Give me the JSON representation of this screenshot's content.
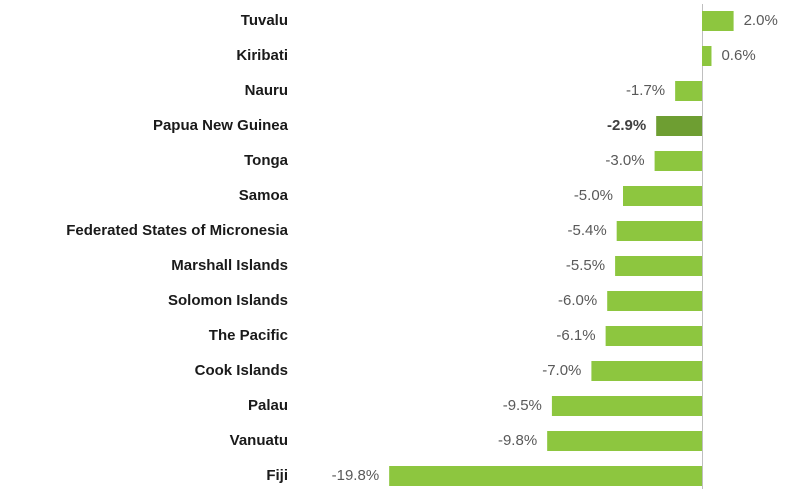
{
  "chart_data": {
    "type": "hbar",
    "categories": [
      "Tuvalu",
      "Kiribati",
      "Nauru",
      "Papua New Guinea",
      "Tonga",
      "Samoa",
      "Federated States of Micronesia",
      "Marshall Islands",
      "Solomon Islands",
      "The Pacific",
      "Cook Islands",
      "Palau",
      "Vanuatu",
      "Fiji"
    ],
    "values": [
      2.0,
      0.6,
      -1.7,
      -2.9,
      -3.0,
      -5.0,
      -5.4,
      -5.5,
      -6.0,
      -6.1,
      -7.0,
      -9.5,
      -9.8,
      -19.8
    ],
    "value_labels": [
      "2.0%",
      "0.6%",
      "-1.7%",
      "-2.9%",
      "-3.0%",
      "-5.0%",
      "-5.4%",
      "-5.5%",
      "-6.0%",
      "-6.1%",
      "-7.0%",
      "-9.5%",
      "-9.8%",
      "-19.8%"
    ],
    "color": "#8dc63f",
    "highlight": 3,
    "highlight_color": "#6e9e32"
  }
}
